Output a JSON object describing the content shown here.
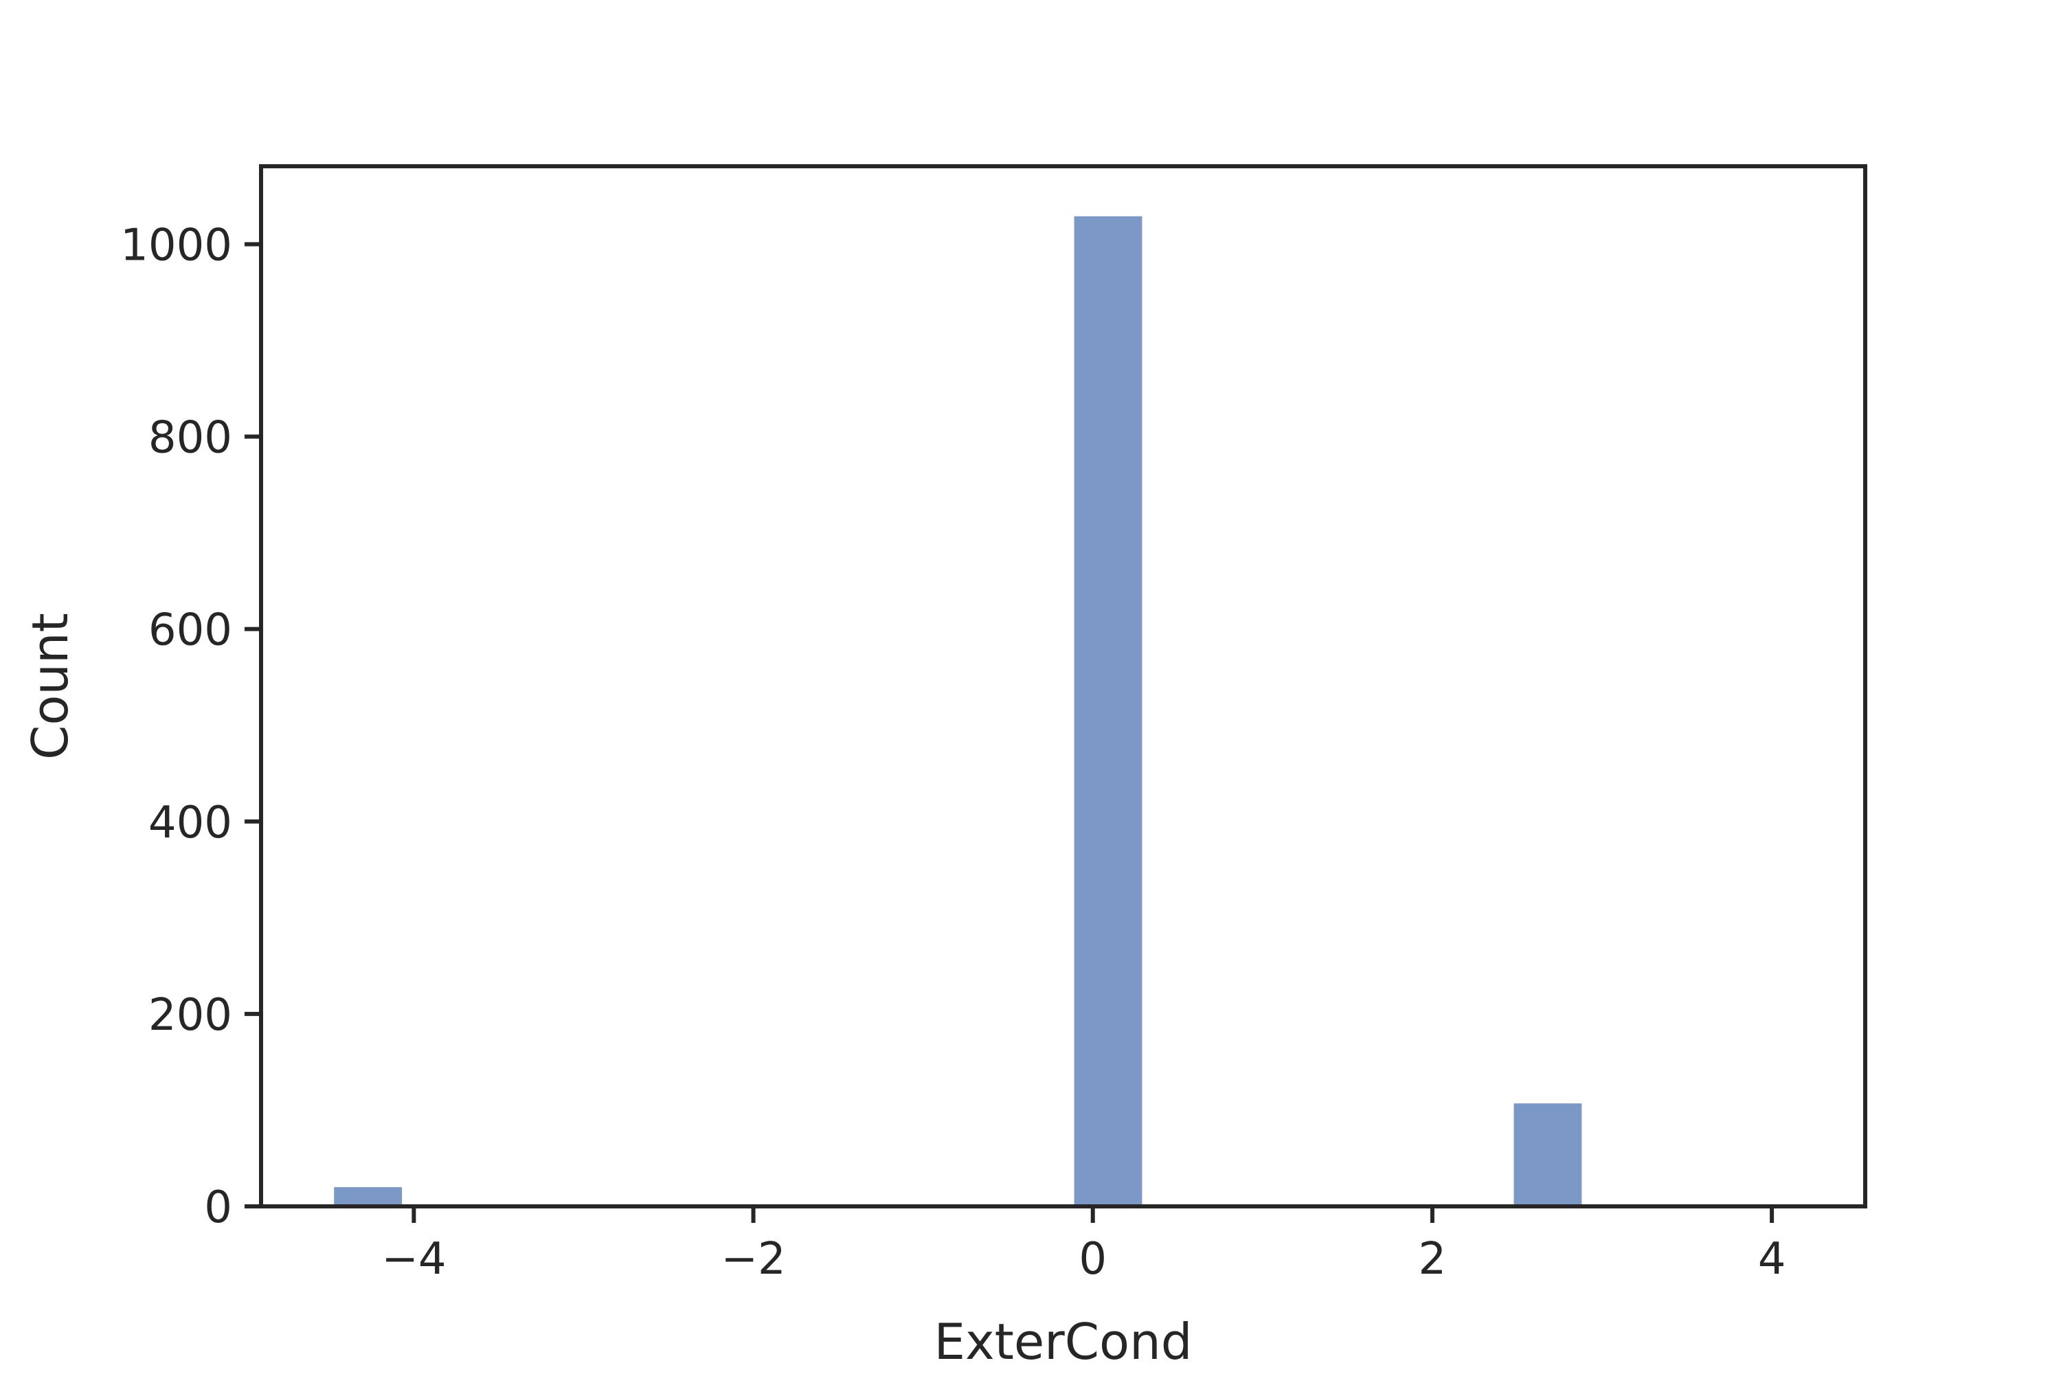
{
  "chart_data": {
    "type": "histogram",
    "title": "",
    "xlabel": "ExterCond",
    "ylabel": "Count",
    "xlim": [
      -4.9,
      4.55
    ],
    "ylim": [
      0,
      1081
    ],
    "xticks": [
      -4,
      -2,
      0,
      2,
      4
    ],
    "xtick_labels": [
      "−4",
      "−2",
      "0",
      "2",
      "4"
    ],
    "yticks": [
      0,
      200,
      400,
      600,
      800,
      1000
    ],
    "ytick_labels": [
      "0",
      "200",
      "400",
      "600",
      "800",
      "1000"
    ],
    "bar_color": "#7b98c6",
    "grid": false,
    "legend": null,
    "bins": [
      {
        "x_start": -4.47,
        "x_end": -4.07,
        "count": 20
      },
      {
        "x_start": -0.11,
        "x_end": 0.29,
        "count": 1029
      },
      {
        "x_start": 2.48,
        "x_end": 2.88,
        "count": 107
      }
    ]
  }
}
